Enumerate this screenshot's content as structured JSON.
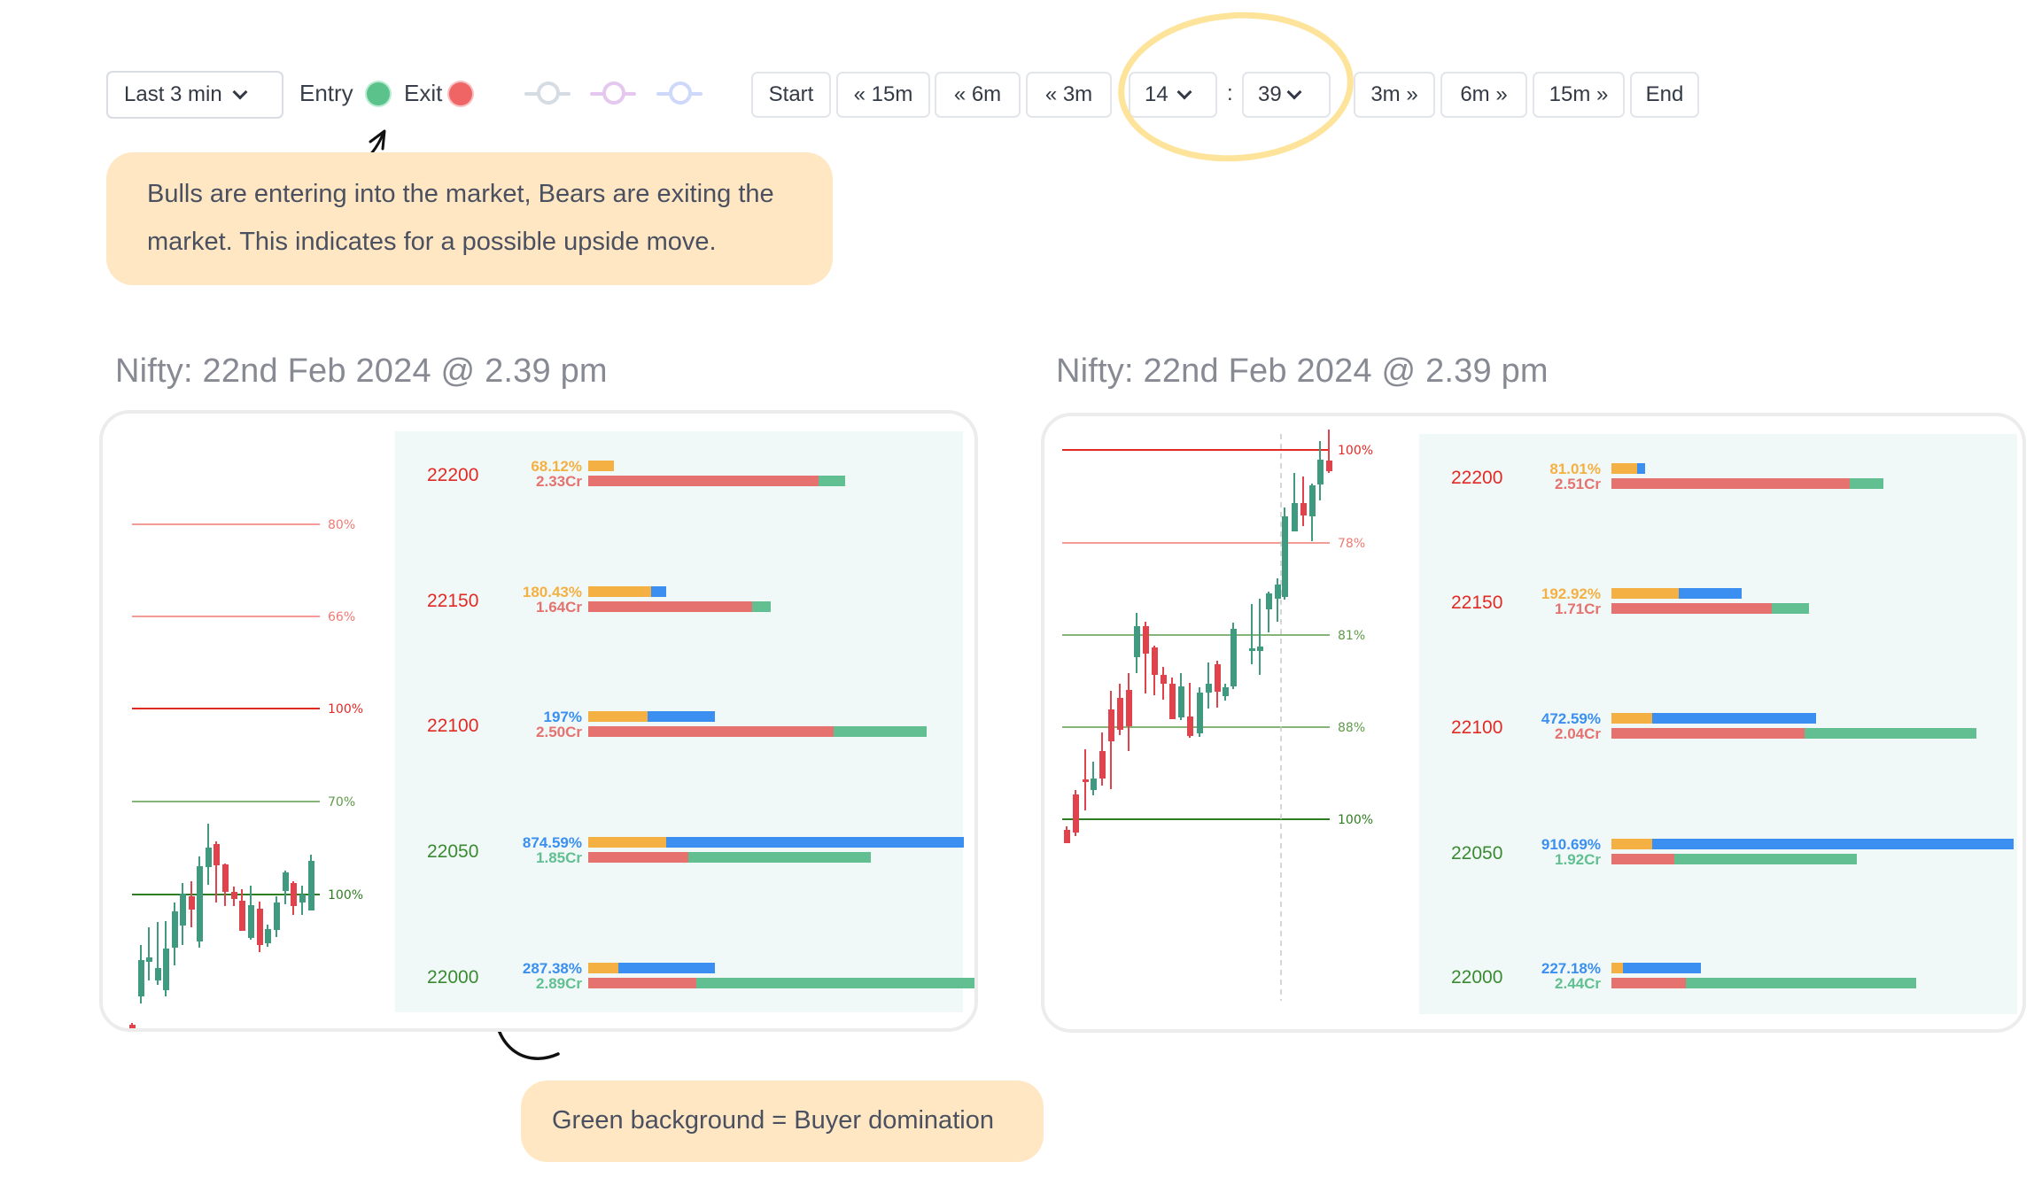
{
  "toolbar": {
    "range_select": "Last 3 min",
    "legend": [
      {
        "label": "Entry",
        "color": "#5cc28c"
      },
      {
        "label": "Exit",
        "color": "#ef6565"
      }
    ],
    "indicator_toggles": [
      {
        "name": "gray-indicator-toggle",
        "color": "#d6dce3"
      },
      {
        "name": "purple-indicator-toggle",
        "color": "#e5c8f0"
      },
      {
        "name": "blue-indicator-toggle",
        "color": "#cdd8fa"
      }
    ],
    "nav_buttons": {
      "start": "Start",
      "back_15m": "« 15m",
      "back_6m": "« 6m",
      "back_3m": "« 3m",
      "hour": "14",
      "separator": ":",
      "minute": "39",
      "fwd_3m": "3m »",
      "fwd_6m": "6m »",
      "fwd_15m": "15m »",
      "end": "End"
    }
  },
  "callouts": {
    "top": "Bulls are entering into the market, Bears are exiting the market. This indicates for a possible upside move.",
    "bottom": "Green background  = Buyer domination"
  },
  "colors": {
    "bull": "#3f9a80",
    "bear": "#e0434b",
    "resistance": "#e6423a",
    "support": "#3a8a32",
    "orange": "#f4b043",
    "blue": "#3a8ff0",
    "red_bar": "#e5726f",
    "green_bar": "#62bf92",
    "panel_bg": "#f0f9f7",
    "callout_bg": "#ffe7c4"
  },
  "chart_data": [
    {
      "type": "bar",
      "title": "Nifty: 22nd Feb 2024 @ 2.39 pm",
      "level_lines": [
        {
          "label": "80%",
          "kind": "resistance"
        },
        {
          "label": "66%",
          "kind": "resistance"
        },
        {
          "label": "100%",
          "kind": "resistance"
        },
        {
          "label": "70%",
          "kind": "support"
        },
        {
          "label": "100%",
          "kind": "support"
        }
      ],
      "categories": [
        "22200",
        "22150",
        "22100",
        "22050",
        "22000"
      ],
      "strike_kind": [
        "resistance",
        "resistance",
        "resistance",
        "support",
        "support"
      ],
      "pct_labels": [
        "68.12%",
        "180.43%",
        "197%",
        "874.59%",
        "287.38%"
      ],
      "pct_label_color": [
        "orange",
        "orange",
        "blue",
        "blue",
        "blue"
      ],
      "cr_labels": [
        "2.33Cr",
        "1.64Cr",
        "2.50Cr",
        "1.85Cr",
        "2.89Cr"
      ],
      "cr_label_color": [
        "red",
        "red",
        "red",
        "green",
        "green"
      ],
      "series": [
        {
          "name": "orange",
          "values": [
            7,
            17,
            16,
            21,
            8
          ]
        },
        {
          "name": "blue",
          "values": [
            0,
            4,
            18,
            80,
            26
          ]
        },
        {
          "name": "red",
          "values": [
            62,
            44,
            66,
            27,
            29
          ]
        },
        {
          "name": "green",
          "values": [
            7,
            5,
            25,
            49,
            77
          ]
        }
      ]
    },
    {
      "type": "bar",
      "title": "Nifty: 22nd Feb 2024 @ 2.39 pm",
      "level_lines": [
        {
          "label": "100%",
          "kind": "resistance"
        },
        {
          "label": "78%",
          "kind": "resistance"
        },
        {
          "label": "81%",
          "kind": "support"
        },
        {
          "label": "88%",
          "kind": "support"
        },
        {
          "label": "100%",
          "kind": "support"
        }
      ],
      "categories": [
        "22200",
        "22150",
        "22100",
        "22050",
        "22000"
      ],
      "strike_kind": [
        "resistance",
        "resistance",
        "resistance",
        "support",
        "support"
      ],
      "pct_labels": [
        "81.01%",
        "192.92%",
        "472.59%",
        "910.69%",
        "227.18%"
      ],
      "pct_label_color": [
        "orange",
        "orange",
        "blue",
        "blue",
        "blue"
      ],
      "cr_labels": [
        "2.51Cr",
        "1.71Cr",
        "2.04Cr",
        "1.92Cr",
        "2.44Cr"
      ],
      "cr_label_color": [
        "red",
        "red",
        "red",
        "green",
        "green"
      ],
      "series": [
        {
          "name": "orange",
          "values": [
            7,
            18,
            11,
            11,
            3
          ]
        },
        {
          "name": "blue",
          "values": [
            2,
            17,
            44,
            97,
            21
          ]
        },
        {
          "name": "red",
          "values": [
            64,
            43,
            52,
            17,
            20
          ]
        },
        {
          "name": "green",
          "values": [
            9,
            10,
            46,
            49,
            62
          ]
        }
      ]
    }
  ]
}
